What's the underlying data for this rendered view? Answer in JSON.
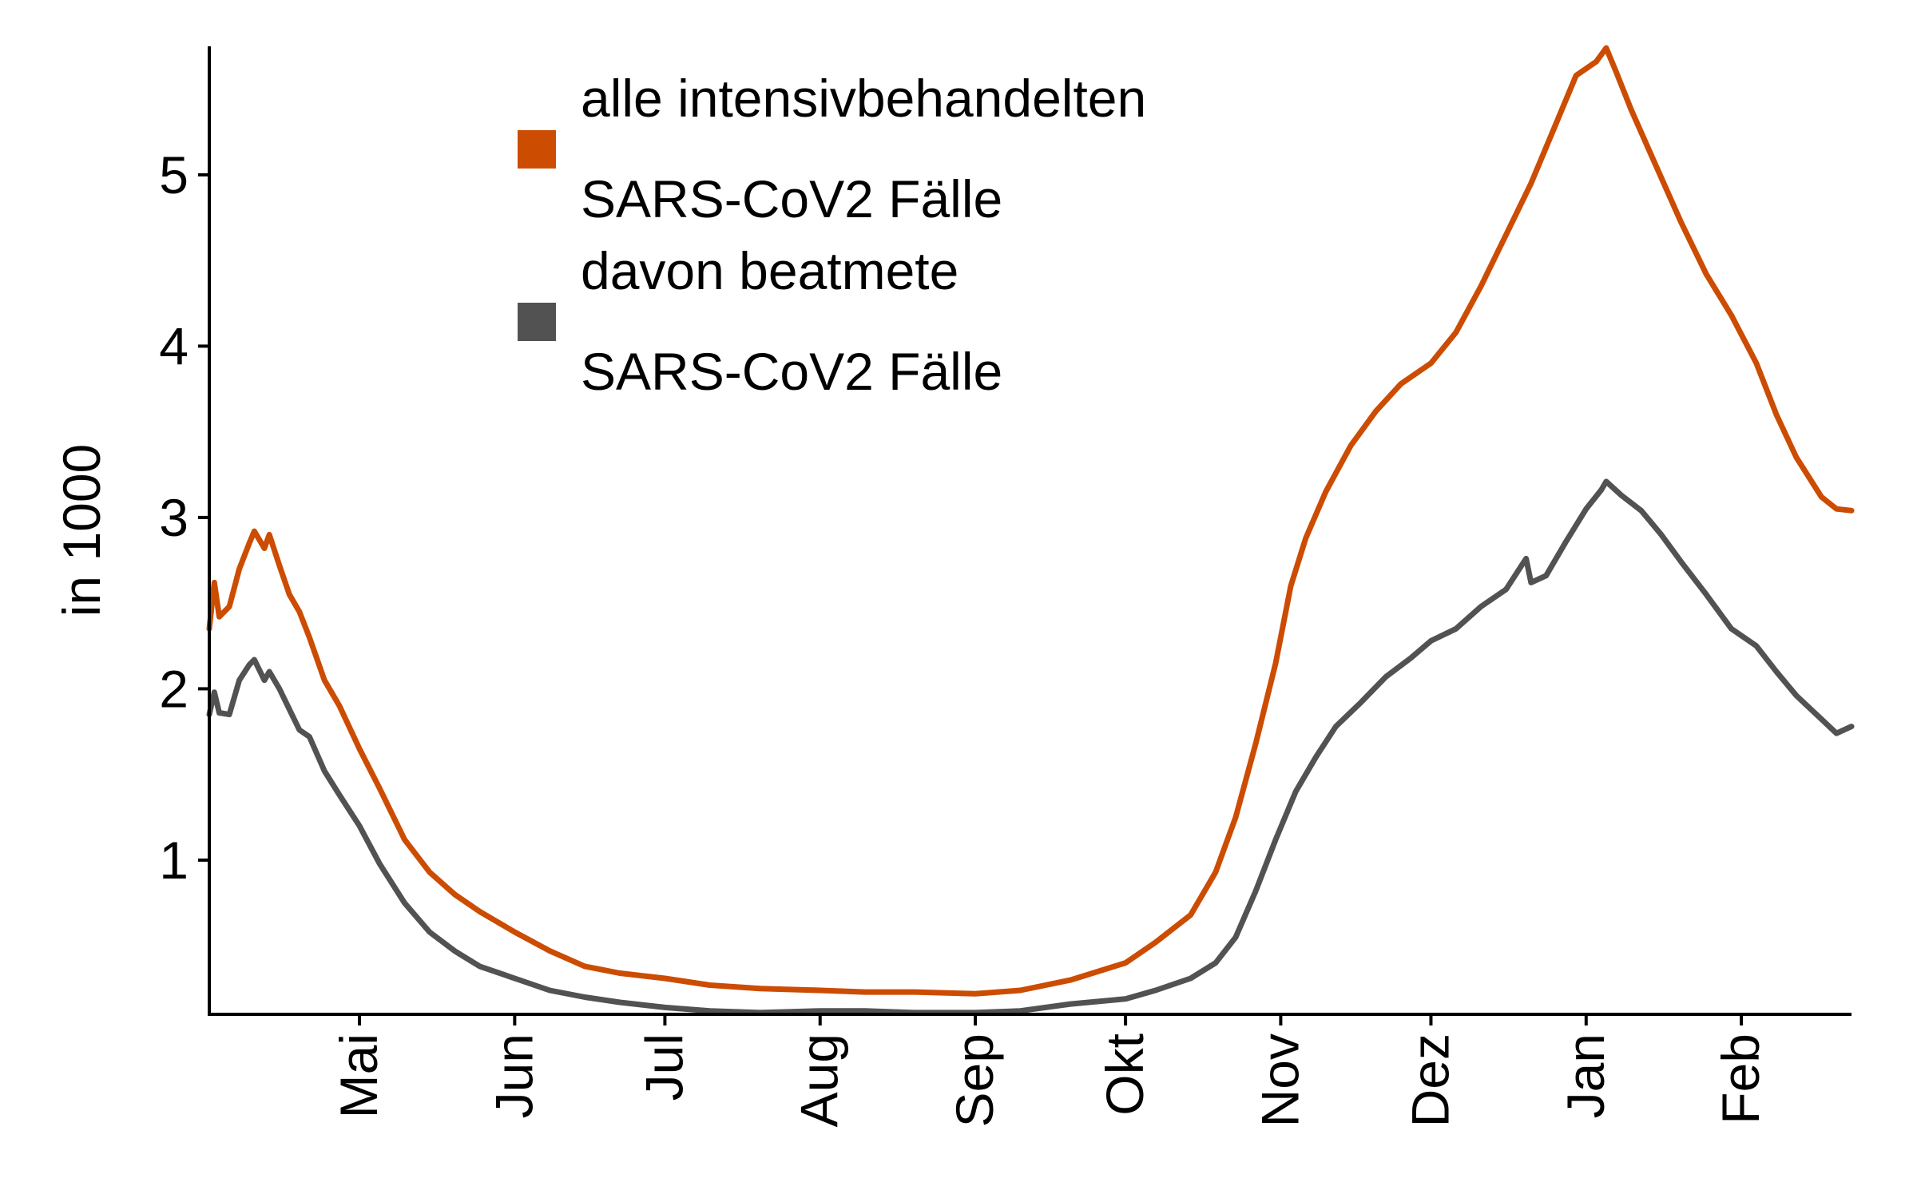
{
  "chart_data": {
    "type": "line",
    "ylabel": "in 1000",
    "xlabel": "",
    "ylim": [
      0.1,
      5.75
    ],
    "y_ticks": [
      1,
      2,
      3,
      4,
      5
    ],
    "y_tick_labels": [
      "1",
      "2",
      "3",
      "4",
      "5"
    ],
    "x_range": [
      "2020-04-01",
      "2021-02-23"
    ],
    "x_ticks": [
      {
        "date": "2020-05-01",
        "label": "Mai"
      },
      {
        "date": "2020-06-01",
        "label": "Jun"
      },
      {
        "date": "2020-07-01",
        "label": "Jul"
      },
      {
        "date": "2020-08-01",
        "label": "Aug"
      },
      {
        "date": "2020-09-01",
        "label": "Sep"
      },
      {
        "date": "2020-10-01",
        "label": "Okt"
      },
      {
        "date": "2020-11-01",
        "label": "Nov"
      },
      {
        "date": "2020-12-01",
        "label": "Dez"
      },
      {
        "date": "2021-01-01",
        "label": "Jan"
      },
      {
        "date": "2021-02-01",
        "label": "Feb"
      }
    ],
    "grid": false,
    "legend_position": "top-center",
    "series": [
      {
        "name_lines": [
          "alle intensivbehandelten",
          "SARS-CoV2 Fälle"
        ],
        "color": "#cc4c02",
        "points": [
          [
            "2020-04-01",
            2.35
          ],
          [
            "2020-04-02",
            2.62
          ],
          [
            "2020-04-03",
            2.42
          ],
          [
            "2020-04-05",
            2.48
          ],
          [
            "2020-04-07",
            2.7
          ],
          [
            "2020-04-09",
            2.85
          ],
          [
            "2020-04-10",
            2.92
          ],
          [
            "2020-04-12",
            2.82
          ],
          [
            "2020-04-13",
            2.9
          ],
          [
            "2020-04-15",
            2.72
          ],
          [
            "2020-04-17",
            2.55
          ],
          [
            "2020-04-19",
            2.45
          ],
          [
            "2020-04-21",
            2.3
          ],
          [
            "2020-04-24",
            2.05
          ],
          [
            "2020-04-27",
            1.9
          ],
          [
            "2020-05-01",
            1.65
          ],
          [
            "2020-05-05",
            1.42
          ],
          [
            "2020-05-10",
            1.12
          ],
          [
            "2020-05-15",
            0.93
          ],
          [
            "2020-05-20",
            0.8
          ],
          [
            "2020-05-25",
            0.7
          ],
          [
            "2020-06-01",
            0.58
          ],
          [
            "2020-06-08",
            0.47
          ],
          [
            "2020-06-15",
            0.38
          ],
          [
            "2020-06-22",
            0.34
          ],
          [
            "2020-07-01",
            0.31
          ],
          [
            "2020-07-10",
            0.27
          ],
          [
            "2020-07-20",
            0.25
          ],
          [
            "2020-08-01",
            0.24
          ],
          [
            "2020-08-10",
            0.23
          ],
          [
            "2020-08-20",
            0.23
          ],
          [
            "2020-09-01",
            0.22
          ],
          [
            "2020-09-10",
            0.24
          ],
          [
            "2020-09-20",
            0.3
          ],
          [
            "2020-10-01",
            0.4
          ],
          [
            "2020-10-07",
            0.52
          ],
          [
            "2020-10-14",
            0.68
          ],
          [
            "2020-10-19",
            0.93
          ],
          [
            "2020-10-23",
            1.25
          ],
          [
            "2020-10-27",
            1.68
          ],
          [
            "2020-10-31",
            2.15
          ],
          [
            "2020-11-03",
            2.6
          ],
          [
            "2020-11-06",
            2.88
          ],
          [
            "2020-11-10",
            3.15
          ],
          [
            "2020-11-15",
            3.42
          ],
          [
            "2020-11-20",
            3.62
          ],
          [
            "2020-11-25",
            3.78
          ],
          [
            "2020-12-01",
            3.9
          ],
          [
            "2020-12-06",
            4.08
          ],
          [
            "2020-12-11",
            4.35
          ],
          [
            "2020-12-16",
            4.65
          ],
          [
            "2020-12-21",
            4.95
          ],
          [
            "2020-12-26",
            5.3
          ],
          [
            "2020-12-30",
            5.58
          ],
          [
            "2021-01-03",
            5.66
          ],
          [
            "2021-01-05",
            5.74
          ],
          [
            "2021-01-07",
            5.6
          ],
          [
            "2021-01-10",
            5.38
          ],
          [
            "2021-01-15",
            5.05
          ],
          [
            "2021-01-20",
            4.72
          ],
          [
            "2021-01-25",
            4.42
          ],
          [
            "2021-01-30",
            4.18
          ],
          [
            "2021-02-04",
            3.9
          ],
          [
            "2021-02-08",
            3.6
          ],
          [
            "2021-02-12",
            3.35
          ],
          [
            "2021-02-17",
            3.12
          ],
          [
            "2021-02-20",
            3.05
          ],
          [
            "2021-02-23",
            3.04
          ]
        ]
      },
      {
        "name_lines": [
          "davon beatmete",
          "SARS-CoV2 Fälle"
        ],
        "color": "#525252",
        "points": [
          [
            "2020-04-01",
            1.85
          ],
          [
            "2020-04-02",
            1.98
          ],
          [
            "2020-04-03",
            1.86
          ],
          [
            "2020-04-05",
            1.85
          ],
          [
            "2020-04-07",
            2.05
          ],
          [
            "2020-04-09",
            2.14
          ],
          [
            "2020-04-10",
            2.17
          ],
          [
            "2020-04-12",
            2.05
          ],
          [
            "2020-04-13",
            2.1
          ],
          [
            "2020-04-15",
            2.0
          ],
          [
            "2020-04-17",
            1.88
          ],
          [
            "2020-04-19",
            1.76
          ],
          [
            "2020-04-21",
            1.72
          ],
          [
            "2020-04-24",
            1.52
          ],
          [
            "2020-04-27",
            1.38
          ],
          [
            "2020-05-01",
            1.2
          ],
          [
            "2020-05-05",
            0.98
          ],
          [
            "2020-05-10",
            0.75
          ],
          [
            "2020-05-15",
            0.58
          ],
          [
            "2020-05-20",
            0.47
          ],
          [
            "2020-05-25",
            0.38
          ],
          [
            "2020-06-01",
            0.31
          ],
          [
            "2020-06-08",
            0.24
          ],
          [
            "2020-06-15",
            0.2
          ],
          [
            "2020-06-22",
            0.17
          ],
          [
            "2020-07-01",
            0.14
          ],
          [
            "2020-07-10",
            0.12
          ],
          [
            "2020-07-20",
            0.11
          ],
          [
            "2020-08-01",
            0.12
          ],
          [
            "2020-08-10",
            0.12
          ],
          [
            "2020-08-20",
            0.11
          ],
          [
            "2020-09-01",
            0.11
          ],
          [
            "2020-09-10",
            0.12
          ],
          [
            "2020-09-20",
            0.16
          ],
          [
            "2020-10-01",
            0.19
          ],
          [
            "2020-10-07",
            0.24
          ],
          [
            "2020-10-14",
            0.31
          ],
          [
            "2020-10-19",
            0.4
          ],
          [
            "2020-10-23",
            0.55
          ],
          [
            "2020-10-27",
            0.82
          ],
          [
            "2020-10-31",
            1.12
          ],
          [
            "2020-11-04",
            1.4
          ],
          [
            "2020-11-08",
            1.6
          ],
          [
            "2020-11-12",
            1.78
          ],
          [
            "2020-11-17",
            1.92
          ],
          [
            "2020-11-22",
            2.07
          ],
          [
            "2020-11-27",
            2.18
          ],
          [
            "2020-12-01",
            2.28
          ],
          [
            "2020-12-06",
            2.35
          ],
          [
            "2020-12-11",
            2.48
          ],
          [
            "2020-12-16",
            2.58
          ],
          [
            "2020-12-20",
            2.76
          ],
          [
            "2020-12-21",
            2.62
          ],
          [
            "2020-12-24",
            2.66
          ],
          [
            "2020-12-28",
            2.86
          ],
          [
            "2021-01-01",
            3.05
          ],
          [
            "2021-01-04",
            3.16
          ],
          [
            "2021-01-05",
            3.21
          ],
          [
            "2021-01-08",
            3.13
          ],
          [
            "2021-01-12",
            3.04
          ],
          [
            "2021-01-16",
            2.9
          ],
          [
            "2021-01-20",
            2.74
          ],
          [
            "2021-01-25",
            2.55
          ],
          [
            "2021-01-30",
            2.35
          ],
          [
            "2021-02-04",
            2.25
          ],
          [
            "2021-02-08",
            2.1
          ],
          [
            "2021-02-12",
            1.96
          ],
          [
            "2021-02-16",
            1.85
          ],
          [
            "2021-02-20",
            1.74
          ],
          [
            "2021-02-23",
            1.78
          ]
        ]
      }
    ]
  }
}
